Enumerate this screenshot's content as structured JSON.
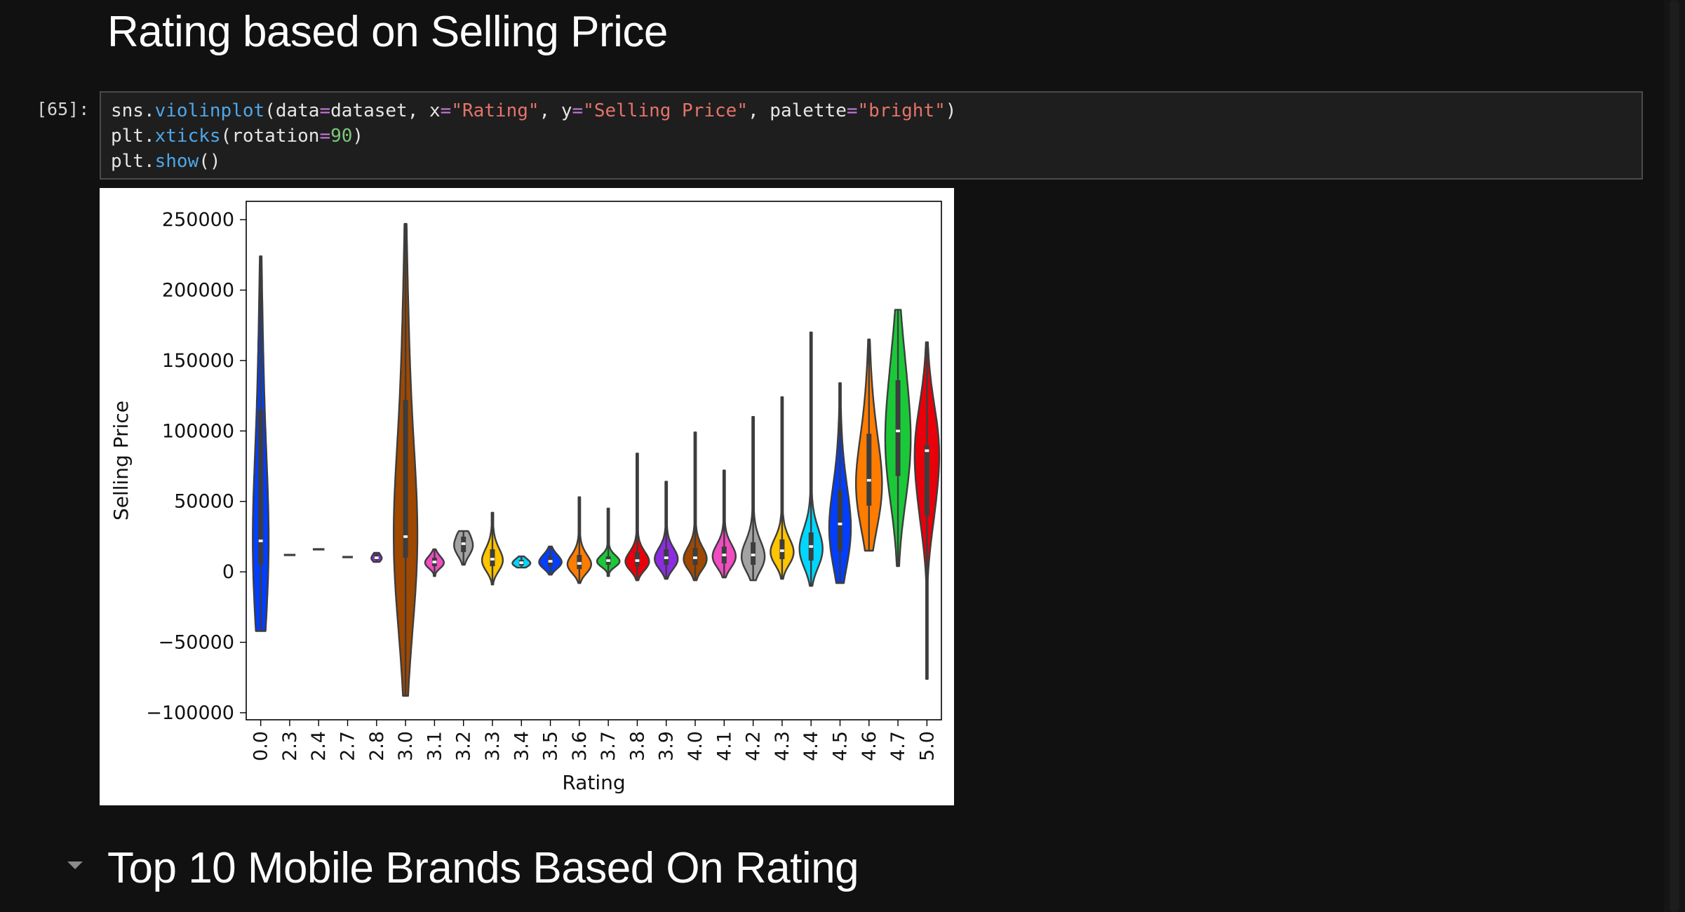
{
  "headings": {
    "section_title": "Rating based on Selling Price",
    "next_section_title": "Top 10 Mobile Brands Based On Rating"
  },
  "cell": {
    "prompt": "[65]:",
    "tokens": {
      "sns": "sns",
      "violinplot": "violinplot",
      "data_kw": "data",
      "dataset": "dataset",
      "x_kw": "x",
      "rating_str": "\"Rating\"",
      "y_kw": "y",
      "price_str": "\"Selling Price\"",
      "palette_kw": "palette",
      "bright_str": "\"bright\"",
      "plt": "plt",
      "xticks": "xticks",
      "rotation_kw": "rotation",
      "rotation_val": "90",
      "show": "show"
    }
  },
  "chart_data": {
    "type": "violin",
    "title": "",
    "xlabel": "Rating",
    "ylabel": "Selling Price",
    "ylim": [
      -105000,
      263000
    ],
    "yticks": [
      -100000,
      -50000,
      0,
      50000,
      100000,
      150000,
      200000,
      250000
    ],
    "ytick_labels": [
      "−100000",
      "−50000",
      "0",
      "50000",
      "100000",
      "150000",
      "200000",
      "250000"
    ],
    "categories": [
      "0.0",
      "2.3",
      "2.4",
      "2.7",
      "2.8",
      "3.0",
      "3.1",
      "3.2",
      "3.3",
      "3.4",
      "3.5",
      "3.6",
      "3.7",
      "3.8",
      "3.9",
      "4.0",
      "4.1",
      "4.2",
      "4.3",
      "4.4",
      "4.5",
      "4.6",
      "4.7",
      "5.0"
    ],
    "violins": [
      {
        "color": "#023eff",
        "min": -42000,
        "max": 224000,
        "q1": 5000,
        "median": 22000,
        "q3": 115000,
        "width": 0.55
      },
      {
        "color": "#ff7c00",
        "min": 12000,
        "max": 12000,
        "q1": 12000,
        "median": 12000,
        "q3": 12000,
        "width": 0.4
      },
      {
        "color": "#1ac938",
        "min": 16000,
        "max": 16000,
        "q1": 16000,
        "median": 16000,
        "q3": 16000,
        "width": 0.4
      },
      {
        "color": "#e8000b",
        "min": 9500,
        "max": 11500,
        "q1": 10000,
        "median": 10500,
        "q3": 11000,
        "width": 0.36
      },
      {
        "color": "#8b2be2",
        "min": 7000,
        "max": 13500,
        "q1": 8500,
        "median": 10000,
        "q3": 12500,
        "width": 0.36
      },
      {
        "color": "#9f4800",
        "min": -88000,
        "max": 247000,
        "q1": 10000,
        "median": 25000,
        "q3": 122000,
        "width": 0.82
      },
      {
        "color": "#f14cc1",
        "min": -3000,
        "max": 16000,
        "q1": 4000,
        "median": 7000,
        "q3": 10000,
        "width": 0.65
      },
      {
        "color": "#a3a3a3",
        "min": 5000,
        "max": 29000,
        "q1": 14000,
        "median": 20000,
        "q3": 25000,
        "width": 0.65
      },
      {
        "color": "#ffc400",
        "min": -9000,
        "max": 42000,
        "q1": 4000,
        "median": 9000,
        "q3": 16000,
        "width": 0.72
      },
      {
        "color": "#00d7ff",
        "min": 3000,
        "max": 11000,
        "q1": 4500,
        "median": 6500,
        "q3": 8500,
        "width": 0.62
      },
      {
        "color": "#023eff",
        "min": -2000,
        "max": 18000,
        "q1": 4000,
        "median": 7500,
        "q3": 11000,
        "width": 0.78
      },
      {
        "color": "#ff7c00",
        "min": -8000,
        "max": 53000,
        "q1": 2000,
        "median": 6000,
        "q3": 12000,
        "width": 0.82
      },
      {
        "color": "#1ac938",
        "min": -3000,
        "max": 45000,
        "q1": 5000,
        "median": 8000,
        "q3": 11000,
        "width": 0.78
      },
      {
        "color": "#e8000b",
        "min": -6000,
        "max": 84000,
        "q1": 4000,
        "median": 8000,
        "q3": 14000,
        "width": 0.82
      },
      {
        "color": "#8b2be2",
        "min": -5000,
        "max": 64000,
        "q1": 5000,
        "median": 10000,
        "q3": 16000,
        "width": 0.8
      },
      {
        "color": "#9f4800",
        "min": -6000,
        "max": 99000,
        "q1": 5000,
        "median": 10000,
        "q3": 17000,
        "width": 0.8
      },
      {
        "color": "#f14cc1",
        "min": -4000,
        "max": 72000,
        "q1": 6000,
        "median": 12000,
        "q3": 18000,
        "width": 0.8
      },
      {
        "color": "#a3a3a3",
        "min": -6000,
        "max": 110000,
        "q1": 5000,
        "median": 12000,
        "q3": 21000,
        "width": 0.8
      },
      {
        "color": "#ffc400",
        "min": -5000,
        "max": 124000,
        "q1": 9000,
        "median": 15000,
        "q3": 23000,
        "width": 0.8
      },
      {
        "color": "#00d7ff",
        "min": -10000,
        "max": 170000,
        "q1": 8000,
        "median": 18000,
        "q3": 28000,
        "width": 0.8
      },
      {
        "color": "#023eff",
        "min": -8000,
        "max": 134000,
        "q1": 15000,
        "median": 34000,
        "q3": 58000,
        "width": 0.75
      },
      {
        "color": "#ff7c00",
        "min": 15000,
        "max": 165000,
        "q1": 47000,
        "median": 65000,
        "q3": 98000,
        "width": 0.9
      },
      {
        "color": "#1ac938",
        "min": 4000,
        "max": 186000,
        "q1": 68000,
        "median": 100000,
        "q3": 136000,
        "width": 0.88
      },
      {
        "color": "#e8000b",
        "min": -76000,
        "max": 163000,
        "q1": 40000,
        "median": 86000,
        "q3": 90000,
        "width": 0.85
      }
    ]
  }
}
